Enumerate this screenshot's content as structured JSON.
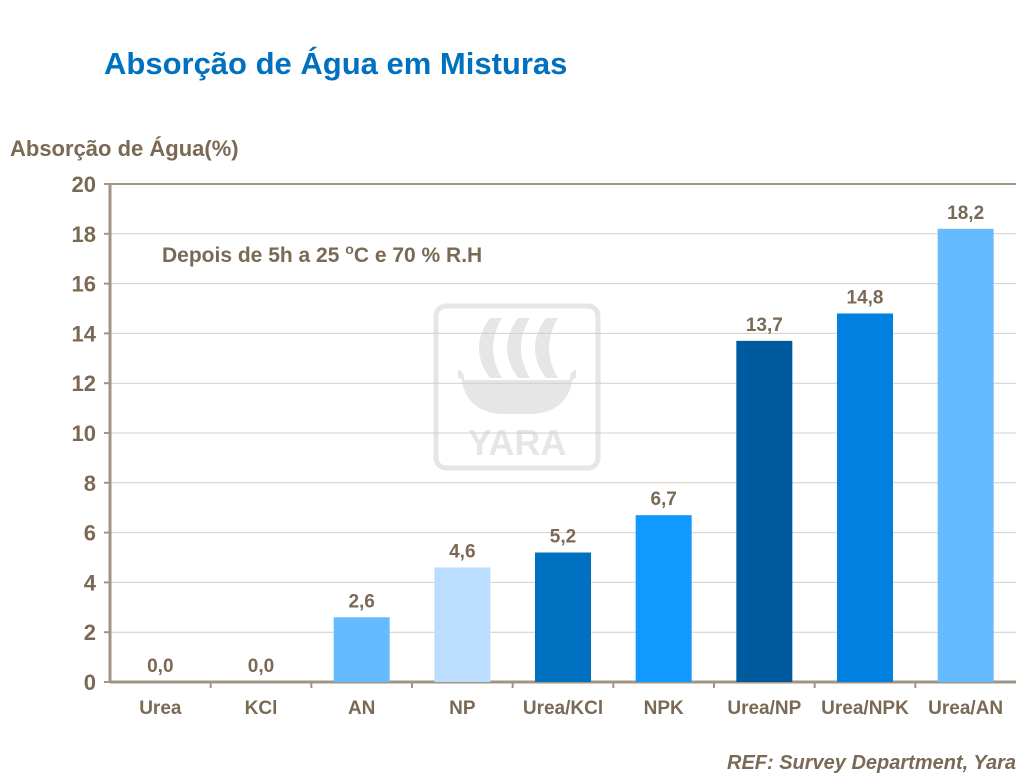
{
  "title": "Absorção de Água em Misturas",
  "reference": "REF: Survey Department, Yara",
  "chart_data": {
    "type": "bar",
    "title": "Absorção de Água em Misturas",
    "ylabel": "Absorção de Água(%)",
    "xlabel": "",
    "ylim": [
      0,
      20
    ],
    "yticks": [
      0,
      2,
      4,
      6,
      8,
      10,
      12,
      14,
      16,
      18,
      20
    ],
    "grid": true,
    "annotation": {
      "prefix": "Depois de 5h a 25 ",
      "sup": "o",
      "suffix": "C e 70 % R.H"
    },
    "categories": [
      "Urea",
      "KCl",
      "AN",
      "NP",
      "Urea/KCl",
      "NPK",
      "Urea/NP",
      "Urea/NPK",
      "Urea/AN"
    ],
    "values": [
      0.0,
      0.0,
      2.6,
      4.6,
      5.2,
      6.7,
      13.7,
      14.8,
      18.2
    ],
    "data_labels": [
      "0,0",
      "0,0",
      "2,6",
      "4,6",
      "5,2",
      "6,7",
      "13,7",
      "14,8",
      "18,2"
    ],
    "colors": [
      "#66BBFF",
      "#66BBFF",
      "#66BBFF",
      "#BBDDFF",
      "#0070C0",
      "#1199FF",
      "#005A9E",
      "#0080E0",
      "#66BBFF"
    ]
  },
  "watermark": {
    "logo": "yara-logo",
    "text": "YARA"
  }
}
